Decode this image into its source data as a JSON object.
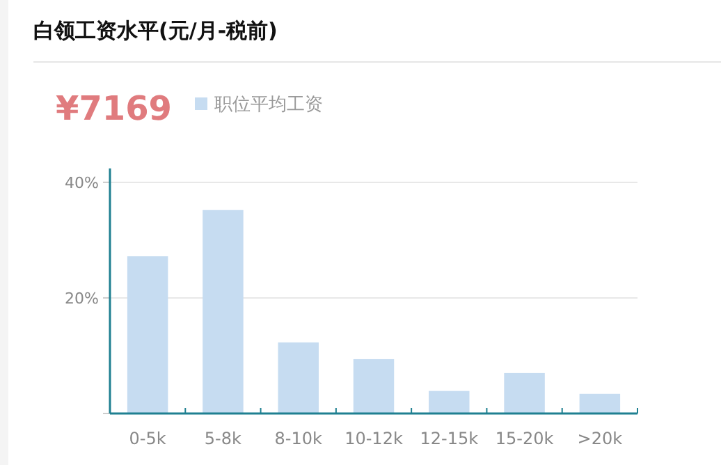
{
  "chart_data": {
    "type": "bar",
    "title": "白领工资水平(元/月-税前)",
    "annotations": [
      "¥7169"
    ],
    "categories": [
      "0-5k",
      "5-8k",
      "8-10k",
      "10-12k",
      "12-15k",
      "15-20k",
      ">20k"
    ],
    "series": [
      {
        "name": "职位平均工资",
        "color": "#c6dcf1",
        "values": [
          27.2,
          35.2,
          12.3,
          9.4,
          3.9,
          7.0,
          3.4
        ]
      }
    ],
    "ylim": [
      0,
      42.4
    ],
    "yticks": [
      {
        "value": 0,
        "label": null
      },
      {
        "value": 20,
        "label": "20%"
      },
      {
        "value": 40,
        "label": "40%"
      }
    ],
    "grid": "y",
    "legend": "top left"
  }
}
